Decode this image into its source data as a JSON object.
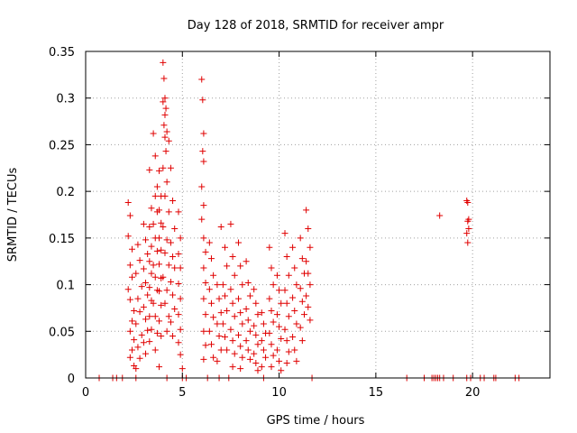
{
  "chart_data": {
    "type": "scatter",
    "title": "Day 128 of 2018, SRMTID for receiver ampr",
    "xlabel": "GPS time / hours",
    "ylabel": "SRMTID / TECUs",
    "xlim": [
      0,
      24
    ],
    "ylim": [
      0,
      0.35
    ],
    "xticks": [
      0,
      5,
      10,
      15,
      20
    ],
    "xtick_labels": [
      "0",
      "5",
      "10",
      "15",
      "20"
    ],
    "yticks": [
      0,
      0.05,
      0.1,
      0.15,
      0.2,
      0.25,
      0.3,
      0.35
    ],
    "ytick_labels": [
      "0",
      "0.05",
      "0.1",
      "0.15",
      "0.2",
      "0.25",
      "0.3",
      "0.35"
    ],
    "grid": true,
    "marker": "+",
    "color": "#e00000",
    "series": [
      {
        "name": "SRMTID",
        "points": [
          [
            0.7,
            0
          ],
          [
            1.4,
            0
          ],
          [
            1.6,
            0
          ],
          [
            1.9,
            0
          ],
          [
            2.6,
            0
          ],
          [
            4.2,
            0
          ],
          [
            5.0,
            0
          ],
          [
            5.2,
            0
          ],
          [
            6.3,
            0
          ],
          [
            6.9,
            0
          ],
          [
            7.4,
            0
          ],
          [
            9.2,
            0
          ],
          [
            11.7,
            0
          ],
          [
            16.6,
            0
          ],
          [
            17.5,
            0
          ],
          [
            17.9,
            0
          ],
          [
            18.0,
            0
          ],
          [
            18.1,
            0
          ],
          [
            18.2,
            0
          ],
          [
            18.3,
            0
          ],
          [
            18.5,
            0
          ],
          [
            19.0,
            0
          ],
          [
            19.7,
            0
          ],
          [
            19.9,
            0
          ],
          [
            20.4,
            0
          ],
          [
            20.6,
            0
          ],
          [
            21.1,
            0
          ],
          [
            21.2,
            0
          ],
          [
            22.2,
            0
          ],
          [
            22.4,
            0
          ],
          [
            2.2,
            0.188
          ],
          [
            2.3,
            0.174
          ],
          [
            2.2,
            0.152
          ],
          [
            2.4,
            0.138
          ],
          [
            2.3,
            0.121
          ],
          [
            2.4,
            0.108
          ],
          [
            2.2,
            0.095
          ],
          [
            2.3,
            0.084
          ],
          [
            2.5,
            0.072
          ],
          [
            2.4,
            0.061
          ],
          [
            2.3,
            0.05
          ],
          [
            2.5,
            0.041
          ],
          [
            2.4,
            0.03
          ],
          [
            2.3,
            0.022
          ],
          [
            2.5,
            0.013
          ],
          [
            2.7,
            0.143
          ],
          [
            2.8,
            0.126
          ],
          [
            2.6,
            0.112
          ],
          [
            2.9,
            0.098
          ],
          [
            2.7,
            0.085
          ],
          [
            2.8,
            0.071
          ],
          [
            2.6,
            0.058
          ],
          [
            2.9,
            0.046
          ],
          [
            2.7,
            0.033
          ],
          [
            2.8,
            0.021
          ],
          [
            2.6,
            0.01
          ],
          [
            3.0,
            0.165
          ],
          [
            3.1,
            0.148
          ],
          [
            3.2,
            0.133
          ],
          [
            3.0,
            0.117
          ],
          [
            3.1,
            0.102
          ],
          [
            3.2,
            0.089
          ],
          [
            3.0,
            0.076
          ],
          [
            3.1,
            0.063
          ],
          [
            3.2,
            0.051
          ],
          [
            3.0,
            0.038
          ],
          [
            3.1,
            0.026
          ],
          [
            3.3,
            0.223
          ],
          [
            3.4,
            0.182
          ],
          [
            3.3,
            0.162
          ],
          [
            3.4,
            0.141
          ],
          [
            3.3,
            0.125
          ],
          [
            3.4,
            0.112
          ],
          [
            3.3,
            0.097
          ],
          [
            3.4,
            0.083
          ],
          [
            3.3,
            0.066
          ],
          [
            3.4,
            0.052
          ],
          [
            3.3,
            0.039
          ],
          [
            3.5,
            0.262
          ],
          [
            3.6,
            0.238
          ],
          [
            3.7,
            0.205
          ],
          [
            3.6,
            0.195
          ],
          [
            3.7,
            0.178
          ],
          [
            3.5,
            0.165
          ],
          [
            3.6,
            0.15
          ],
          [
            3.7,
            0.136
          ],
          [
            3.5,
            0.121
          ],
          [
            3.6,
            0.108
          ],
          [
            3.7,
            0.094
          ],
          [
            3.5,
            0.08
          ],
          [
            3.6,
            0.066
          ],
          [
            3.7,
            0.048
          ],
          [
            3.6,
            0.03
          ],
          [
            3.8,
            0.222
          ],
          [
            3.9,
            0.195
          ],
          [
            3.8,
            0.18
          ],
          [
            3.9,
            0.166
          ],
          [
            3.8,
            0.15
          ],
          [
            3.9,
            0.137
          ],
          [
            3.8,
            0.122
          ],
          [
            3.9,
            0.107
          ],
          [
            3.8,
            0.093
          ],
          [
            3.9,
            0.078
          ],
          [
            3.8,
            0.061
          ],
          [
            3.9,
            0.045
          ],
          [
            3.8,
            0.012
          ],
          [
            4.0,
            0.338
          ],
          [
            4.05,
            0.321
          ],
          [
            4.1,
            0.3
          ],
          [
            4.0,
            0.296
          ],
          [
            4.15,
            0.289
          ],
          [
            4.1,
            0.282
          ],
          [
            4.05,
            0.271
          ],
          [
            4.2,
            0.264
          ],
          [
            4.1,
            0.258
          ],
          [
            4.3,
            0.254
          ],
          [
            4.15,
            0.243
          ],
          [
            4.0,
            0.225
          ],
          [
            4.2,
            0.21
          ],
          [
            4.1,
            0.195
          ],
          [
            4.3,
            0.178
          ],
          [
            4.0,
            0.162
          ],
          [
            4.2,
            0.148
          ],
          [
            4.1,
            0.134
          ],
          [
            4.3,
            0.121
          ],
          [
            4.0,
            0.108
          ],
          [
            4.2,
            0.094
          ],
          [
            4.1,
            0.08
          ],
          [
            4.3,
            0.066
          ],
          [
            4.2,
            0.05
          ],
          [
            4.4,
            0.225
          ],
          [
            4.5,
            0.19
          ],
          [
            4.6,
            0.16
          ],
          [
            4.4,
            0.145
          ],
          [
            4.5,
            0.13
          ],
          [
            4.6,
            0.118
          ],
          [
            4.4,
            0.103
          ],
          [
            4.5,
            0.089
          ],
          [
            4.6,
            0.074
          ],
          [
            4.4,
            0.06
          ],
          [
            4.5,
            0.045
          ],
          [
            4.8,
            0.178
          ],
          [
            4.9,
            0.15
          ],
          [
            4.8,
            0.133
          ],
          [
            4.9,
            0.118
          ],
          [
            4.8,
            0.101
          ],
          [
            4.9,
            0.085
          ],
          [
            4.8,
            0.068
          ],
          [
            4.9,
            0.052
          ],
          [
            4.8,
            0.038
          ],
          [
            4.9,
            0.025
          ],
          [
            5.0,
            0.01
          ],
          [
            6.0,
            0.32
          ],
          [
            6.05,
            0.298
          ],
          [
            6.1,
            0.262
          ],
          [
            6.05,
            0.243
          ],
          [
            6.1,
            0.232
          ],
          [
            6.0,
            0.205
          ],
          [
            6.1,
            0.185
          ],
          [
            6.0,
            0.17
          ],
          [
            6.1,
            0.15
          ],
          [
            6.2,
            0.135
          ],
          [
            6.1,
            0.118
          ],
          [
            6.2,
            0.102
          ],
          [
            6.1,
            0.085
          ],
          [
            6.2,
            0.068
          ],
          [
            6.1,
            0.05
          ],
          [
            6.2,
            0.035
          ],
          [
            6.1,
            0.02
          ],
          [
            6.4,
            0.145
          ],
          [
            6.5,
            0.128
          ],
          [
            6.6,
            0.11
          ],
          [
            6.4,
            0.095
          ],
          [
            6.5,
            0.08
          ],
          [
            6.6,
            0.065
          ],
          [
            6.4,
            0.05
          ],
          [
            6.5,
            0.036
          ],
          [
            6.6,
            0.022
          ],
          [
            6.8,
            0.1
          ],
          [
            6.9,
            0.085
          ],
          [
            7.0,
            0.07
          ],
          [
            6.8,
            0.058
          ],
          [
            6.9,
            0.045
          ],
          [
            7.0,
            0.03
          ],
          [
            6.8,
            0.018
          ],
          [
            7.0,
            0.162
          ],
          [
            7.2,
            0.14
          ],
          [
            7.3,
            0.12
          ],
          [
            7.1,
            0.1
          ],
          [
            7.2,
            0.088
          ],
          [
            7.3,
            0.072
          ],
          [
            7.1,
            0.058
          ],
          [
            7.2,
            0.044
          ],
          [
            7.3,
            0.03
          ],
          [
            7.5,
            0.165
          ],
          [
            7.6,
            0.13
          ],
          [
            7.7,
            0.11
          ],
          [
            7.5,
            0.095
          ],
          [
            7.6,
            0.08
          ],
          [
            7.7,
            0.066
          ],
          [
            7.5,
            0.052
          ],
          [
            7.6,
            0.04
          ],
          [
            7.7,
            0.026
          ],
          [
            7.6,
            0.012
          ],
          [
            7.9,
            0.145
          ],
          [
            8.0,
            0.12
          ],
          [
            8.1,
            0.1
          ],
          [
            7.9,
            0.085
          ],
          [
            8.0,
            0.07
          ],
          [
            8.1,
            0.058
          ],
          [
            7.9,
            0.046
          ],
          [
            8.0,
            0.034
          ],
          [
            8.1,
            0.022
          ],
          [
            8.0,
            0.01
          ],
          [
            8.3,
            0.125
          ],
          [
            8.4,
            0.102
          ],
          [
            8.5,
            0.088
          ],
          [
            8.3,
            0.074
          ],
          [
            8.4,
            0.062
          ],
          [
            8.5,
            0.05
          ],
          [
            8.3,
            0.04
          ],
          [
            8.4,
            0.03
          ],
          [
            8.5,
            0.02
          ],
          [
            8.7,
            0.095
          ],
          [
            8.8,
            0.08
          ],
          [
            8.9,
            0.068
          ],
          [
            8.7,
            0.056
          ],
          [
            8.8,
            0.046
          ],
          [
            8.9,
            0.036
          ],
          [
            8.7,
            0.026
          ],
          [
            8.8,
            0.016
          ],
          [
            8.9,
            0.008
          ],
          [
            9.1,
            0.07
          ],
          [
            9.2,
            0.058
          ],
          [
            9.3,
            0.048
          ],
          [
            9.1,
            0.04
          ],
          [
            9.2,
            0.03
          ],
          [
            9.3,
            0.022
          ],
          [
            9.1,
            0.012
          ],
          [
            9.5,
            0.14
          ],
          [
            9.6,
            0.118
          ],
          [
            9.7,
            0.1
          ],
          [
            9.5,
            0.085
          ],
          [
            9.6,
            0.072
          ],
          [
            9.7,
            0.06
          ],
          [
            9.5,
            0.048
          ],
          [
            9.6,
            0.036
          ],
          [
            9.7,
            0.024
          ],
          [
            9.6,
            0.012
          ],
          [
            9.9,
            0.11
          ],
          [
            10.0,
            0.094
          ],
          [
            10.1,
            0.08
          ],
          [
            9.9,
            0.068
          ],
          [
            10.0,
            0.055
          ],
          [
            10.1,
            0.042
          ],
          [
            9.9,
            0.03
          ],
          [
            10.0,
            0.018
          ],
          [
            10.1,
            0.008
          ],
          [
            10.3,
            0.155
          ],
          [
            10.4,
            0.13
          ],
          [
            10.5,
            0.11
          ],
          [
            10.3,
            0.094
          ],
          [
            10.4,
            0.08
          ],
          [
            10.5,
            0.066
          ],
          [
            10.3,
            0.052
          ],
          [
            10.4,
            0.04
          ],
          [
            10.5,
            0.028
          ],
          [
            10.4,
            0.016
          ],
          [
            10.7,
            0.14
          ],
          [
            10.8,
            0.118
          ],
          [
            10.9,
            0.1
          ],
          [
            10.7,
            0.086
          ],
          [
            10.8,
            0.072
          ],
          [
            10.9,
            0.058
          ],
          [
            10.7,
            0.044
          ],
          [
            10.8,
            0.03
          ],
          [
            10.9,
            0.018
          ],
          [
            11.1,
            0.15
          ],
          [
            11.2,
            0.128
          ],
          [
            11.3,
            0.112
          ],
          [
            11.1,
            0.096
          ],
          [
            11.2,
            0.082
          ],
          [
            11.3,
            0.068
          ],
          [
            11.1,
            0.054
          ],
          [
            11.2,
            0.04
          ],
          [
            11.4,
            0.18
          ],
          [
            11.5,
            0.16
          ],
          [
            11.6,
            0.14
          ],
          [
            11.4,
            0.125
          ],
          [
            11.5,
            0.112
          ],
          [
            11.6,
            0.1
          ],
          [
            11.4,
            0.088
          ],
          [
            11.5,
            0.076
          ],
          [
            11.6,
            0.062
          ],
          [
            18.3,
            0.174
          ],
          [
            19.7,
            0.19
          ],
          [
            19.75,
            0.188
          ],
          [
            19.8,
            0.17
          ],
          [
            19.75,
            0.168
          ],
          [
            19.8,
            0.16
          ],
          [
            19.7,
            0.155
          ],
          [
            19.75,
            0.145
          ]
        ]
      }
    ]
  }
}
